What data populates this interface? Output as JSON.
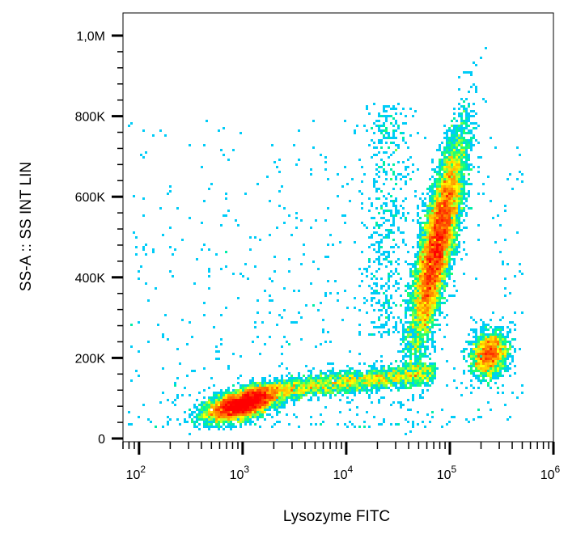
{
  "chart_data": {
    "type": "scatter",
    "subtype": "flow-cytometry-density-plot",
    "xlabel": "Lysozyme FITC",
    "ylabel": "SS-A :: SS INT LIN",
    "x_scale": "log",
    "xlim": [
      70,
      1000000
    ],
    "y_scale": "linear",
    "ylim": [
      0,
      1000000
    ],
    "x_tick_labels": [
      {
        "value": 100,
        "label": "10",
        "exp": "2"
      },
      {
        "value": 1000,
        "label": "10",
        "exp": "3"
      },
      {
        "value": 10000,
        "label": "10",
        "exp": "4"
      },
      {
        "value": 100000,
        "label": "10",
        "exp": "5"
      },
      {
        "value": 1000000,
        "label": "10",
        "exp": "6"
      }
    ],
    "y_tick_labels": [
      {
        "value": 0,
        "label": "0"
      },
      {
        "value": 200000,
        "label": "200K"
      },
      {
        "value": 400000,
        "label": "400K"
      },
      {
        "value": 600000,
        "label": "600K"
      },
      {
        "value": 800000,
        "label": "800K"
      },
      {
        "value": 1000000,
        "label": "1,0M"
      }
    ],
    "populations": [
      {
        "center_x": 1000,
        "center_y": 85000,
        "peak_density": "high"
      },
      {
        "center_x": 75000,
        "center_y": 480000,
        "peak_density": "high"
      },
      {
        "center_x": 240000,
        "center_y": 210000,
        "peak_density": "medium"
      }
    ],
    "colormap": [
      "#0000ff",
      "#00c8ff",
      "#00ff80",
      "#ffff00",
      "#ff8000",
      "#ff0000"
    ],
    "grid": false,
    "legend": "none"
  }
}
